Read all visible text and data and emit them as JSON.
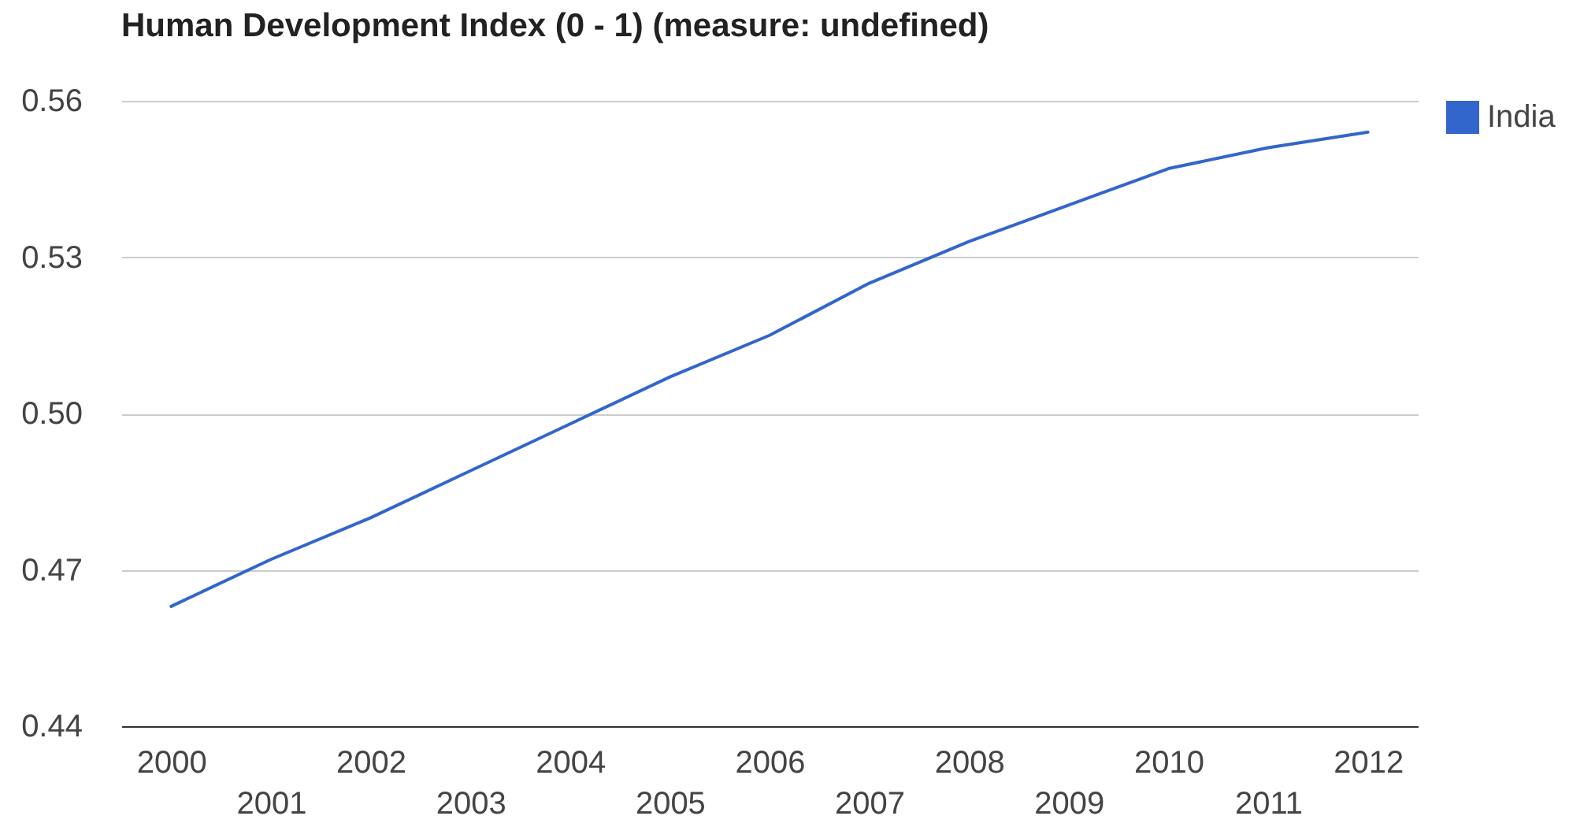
{
  "chart_data": {
    "type": "line",
    "title": "Human Development Index (0 - 1) (measure: undefined)",
    "categories": [
      "2000",
      "2001",
      "2002",
      "2003",
      "2004",
      "2005",
      "2006",
      "2007",
      "2008",
      "2009",
      "2010",
      "2011",
      "2012"
    ],
    "series": [
      {
        "name": "India",
        "color": "#3366cc",
        "values": [
          0.463,
          0.472,
          0.48,
          0.489,
          0.498,
          0.507,
          0.515,
          0.525,
          0.533,
          0.54,
          0.547,
          0.551,
          0.554
        ]
      }
    ],
    "ylim": [
      0.44,
      0.56
    ],
    "yticks": [
      0.44,
      0.47,
      {
        "value": 0.5,
        "label": "0.50"
      },
      0.53,
      0.56
    ],
    "grid": "y",
    "legend": "top right",
    "marker": "none",
    "line_style": "solid"
  }
}
